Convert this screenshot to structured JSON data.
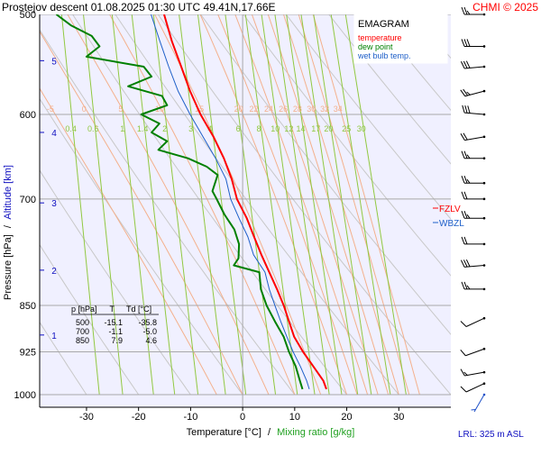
{
  "header": {
    "title": "Prostejov   descent   01.08.2025 01:30 UTC   49.41N,17.66E",
    "copyright": "CHMI © 2025"
  },
  "legend": {
    "name": "EMAGRAM",
    "items": [
      {
        "label": "temperature",
        "color": "#ff0000"
      },
      {
        "label": "dew point",
        "color": "#008000"
      },
      {
        "label": "wet bulb temp.",
        "color": "#1e5fc8"
      }
    ]
  },
  "axes": {
    "y_label_pressure": "Pressure [hPa]",
    "y_label_sep": "/",
    "y_label_altitude": "Altitude [km]",
    "x_label_temp": "Temperature [°C]",
    "x_label_sep": "/",
    "x_label_mix": "Mixing ratio [g/kg]"
  },
  "table": {
    "headers": [
      "p [hPa]",
      "T",
      "Td [°C]"
    ],
    "rows": [
      [
        "500",
        "-15.1",
        "-35.8"
      ],
      [
        "700",
        "-1.1",
        "-5.0"
      ],
      [
        "850",
        "7.9",
        "4.6"
      ]
    ]
  },
  "markers": {
    "fzlv": "FZLV",
    "wbzl": "WBZL"
  },
  "footer": {
    "lrl": "LRL: 325 m ASL"
  },
  "colors": {
    "plot_bg": "#f0f0ff",
    "grid": "#a8a8a8",
    "dry_adiabat": "#c8c8c8",
    "moist_adiabat": "#f4b08c",
    "mixing_ratio": "#90c840",
    "altitude": "#1010c0",
    "temperature": "#ff0000",
    "dew_point": "#008000",
    "wet_bulb": "#1e5fc8",
    "wind": "#000000",
    "wind_surface": "#1e50c8"
  },
  "chart_data": {
    "type": "line",
    "pressure_axis": {
      "scale": "log",
      "range_hpa": [
        500,
        1000
      ],
      "ticks": [
        500,
        600,
        700,
        850,
        925,
        1000
      ]
    },
    "temperature_axis": {
      "range_c": [
        -39,
        40
      ],
      "ticks": [
        -30,
        -20,
        -10,
        0,
        10,
        20,
        30
      ]
    },
    "altitude_ticks_km": [
      {
        "km": 1,
        "p": 897
      },
      {
        "km": 2,
        "p": 797
      },
      {
        "km": 3,
        "p": 705
      },
      {
        "km": 4,
        "p": 620
      },
      {
        "km": 5,
        "p": 544
      }
    ],
    "moist_adiabat_labels": [
      -5,
      0,
      5,
      10,
      15,
      20,
      22,
      24,
      26,
      28,
      30,
      32,
      34
    ],
    "mixing_ratio_labels": [
      "0.4",
      "0.6",
      "1",
      "1.4",
      "2",
      "3",
      "4",
      "6",
      "8",
      "10",
      "12",
      "14",
      "17",
      "20",
      "25",
      "30"
    ],
    "series": [
      {
        "name": "temperature",
        "points": [
          [
            990,
            16.1
          ],
          [
            975,
            15.5
          ],
          [
            950,
            13.6
          ],
          [
            925,
            11.6
          ],
          [
            900,
            9.9
          ],
          [
            875,
            8.9
          ],
          [
            850,
            7.9
          ],
          [
            825,
            6.6
          ],
          [
            800,
            5.1
          ],
          [
            775,
            3.6
          ],
          [
            750,
            2.2
          ],
          [
            725,
            0.8
          ],
          [
            700,
            -1.1
          ],
          [
            675,
            -2.1
          ],
          [
            650,
            -3.6
          ],
          [
            625,
            -5.6
          ],
          [
            600,
            -8.1
          ],
          [
            575,
            -10.1
          ],
          [
            550,
            -11.8
          ],
          [
            525,
            -13.6
          ],
          [
            500,
            -15.1
          ]
        ]
      },
      {
        "name": "dew point",
        "points": [
          [
            990,
            11.5
          ],
          [
            975,
            11.0
          ],
          [
            950,
            10.2
          ],
          [
            925,
            8.9
          ],
          [
            900,
            7.9
          ],
          [
            875,
            6.2
          ],
          [
            850,
            4.6
          ],
          [
            825,
            3.5
          ],
          [
            800,
            3.2
          ],
          [
            790,
            -1.7
          ],
          [
            780,
            -0.8
          ],
          [
            760,
            -0.7
          ],
          [
            740,
            -1.6
          ],
          [
            720,
            -3.5
          ],
          [
            700,
            -5.0
          ],
          [
            690,
            -5.8
          ],
          [
            670,
            -4.8
          ],
          [
            660,
            -6.9
          ],
          [
            650,
            -10.5
          ],
          [
            640,
            -16.2
          ],
          [
            630,
            -14.5
          ],
          [
            620,
            -17.5
          ],
          [
            610,
            -16.0
          ],
          [
            600,
            -19.5
          ],
          [
            590,
            -14.5
          ],
          [
            580,
            -15.5
          ],
          [
            570,
            -22.0
          ],
          [
            560,
            -17.5
          ],
          [
            550,
            -19.0
          ],
          [
            540,
            -30.0
          ],
          [
            530,
            -27.5
          ],
          [
            520,
            -29.0
          ],
          [
            510,
            -33.0
          ],
          [
            500,
            -35.8
          ]
        ]
      },
      {
        "name": "wet bulb temp.",
        "points": [
          [
            990,
            12.8
          ],
          [
            975,
            12.3
          ],
          [
            950,
            11.1
          ],
          [
            925,
            9.7
          ],
          [
            900,
            8.5
          ],
          [
            875,
            7.3
          ],
          [
            850,
            6.2
          ],
          [
            825,
            5.1
          ],
          [
            800,
            4.3
          ],
          [
            775,
            2.1
          ],
          [
            750,
            1.0
          ],
          [
            725,
            -0.7
          ],
          [
            700,
            -2.3
          ],
          [
            675,
            -3.2
          ],
          [
            650,
            -5.2
          ],
          [
            625,
            -7.6
          ],
          [
            600,
            -10.1
          ],
          [
            575,
            -12.4
          ],
          [
            550,
            -14.2
          ],
          [
            525,
            -15.9
          ],
          [
            500,
            -17.6
          ]
        ]
      }
    ],
    "levels": [
      {
        "label": "FZLV",
        "p": 700
      },
      {
        "label": "WBZL",
        "p": 724
      }
    ],
    "wind_barbs": [
      {
        "p": 500,
        "dir_deg": 270,
        "kt": 25
      },
      {
        "p": 530,
        "dir_deg": 270,
        "kt": 30
      },
      {
        "p": 550,
        "dir_deg": 265,
        "kt": 30
      },
      {
        "p": 575,
        "dir_deg": 255,
        "kt": 25
      },
      {
        "p": 600,
        "dir_deg": 275,
        "kt": 30
      },
      {
        "p": 625,
        "dir_deg": 260,
        "kt": 20
      },
      {
        "p": 650,
        "dir_deg": 270,
        "kt": 25
      },
      {
        "p": 680,
        "dir_deg": 270,
        "kt": 25
      },
      {
        "p": 700,
        "dir_deg": 270,
        "kt": 20
      },
      {
        "p": 725,
        "dir_deg": 270,
        "kt": 25
      },
      {
        "p": 760,
        "dir_deg": 270,
        "kt": 20
      },
      {
        "p": 790,
        "dir_deg": 265,
        "kt": 30
      },
      {
        "p": 825,
        "dir_deg": 270,
        "kt": 25
      },
      {
        "p": 870,
        "dir_deg": 245,
        "kt": 10
      },
      {
        "p": 920,
        "dir_deg": 250,
        "kt": 10
      },
      {
        "p": 960,
        "dir_deg": 260,
        "kt": 15
      },
      {
        "p": 980,
        "dir_deg": 245,
        "kt": 10
      },
      {
        "p": 1000,
        "dir_deg": 210,
        "kt": 5
      }
    ]
  }
}
